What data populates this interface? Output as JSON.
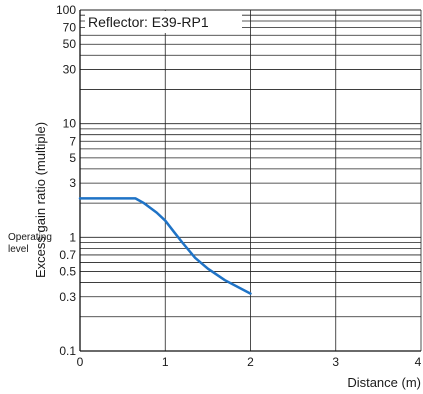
{
  "chart_data": {
    "type": "line",
    "title": "Reflector: E39-RP1",
    "xlabel": "Distance (m)",
    "ylabel": "Excess gain ratio (multiple)",
    "y_scale": "log",
    "xlim": [
      0,
      4
    ],
    "ylim": [
      0.1,
      100
    ],
    "x_ticks": [
      "0",
      "1",
      "2",
      "3",
      "4"
    ],
    "y_ticks": [
      "0.1",
      "0.3",
      "0.5",
      "0.7",
      "1",
      "3",
      "5",
      "7",
      "10",
      "30",
      "50",
      "70",
      "100"
    ],
    "y_tick_values": [
      0.1,
      0.3,
      0.5,
      0.7,
      1,
      3,
      5,
      7,
      10,
      30,
      50,
      70,
      100
    ],
    "reference_label": "Operating\nlevel",
    "reference_line": 1,
    "grid": true,
    "line_color": "#1f73c6",
    "series": [
      {
        "x": [
          0,
          0.65,
          0.75,
          0.9,
          1.0,
          1.1,
          1.2,
          1.35,
          1.5,
          1.7,
          2.0
        ],
        "values": [
          2.2,
          2.2,
          2.0,
          1.65,
          1.4,
          1.12,
          0.9,
          0.66,
          0.53,
          0.42,
          0.32
        ]
      }
    ]
  }
}
